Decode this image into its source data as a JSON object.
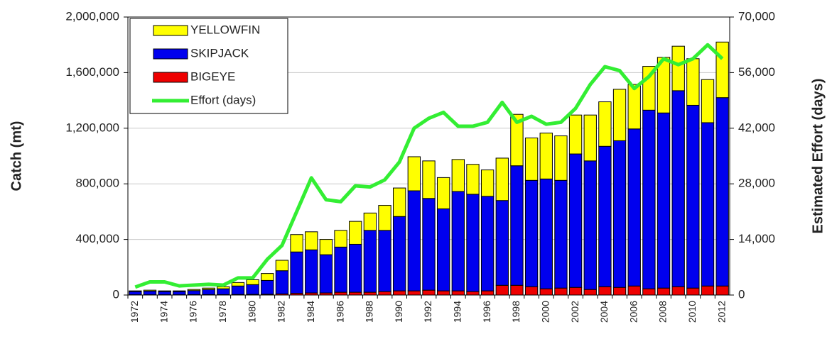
{
  "chart_data": {
    "type": "bar",
    "y_label": "Catch (mt)",
    "y2_label": "Estimated Effort (days)",
    "categories": [
      "1972",
      null,
      "1974",
      null,
      "1976",
      null,
      "1978",
      null,
      "1980",
      null,
      "1982",
      null,
      "1984",
      null,
      "1986",
      null,
      "1988",
      null,
      "1990",
      null,
      "1992",
      null,
      "1994",
      null,
      "1996",
      null,
      "1998",
      null,
      "2000",
      null,
      "2002",
      null,
      "2004",
      null,
      "2006",
      null,
      "2008",
      null,
      "2010",
      null,
      "2012"
    ],
    "series": [
      {
        "name": "YELLOWFIN",
        "color": "#ffff00",
        "values": [
          5000,
          7000,
          5000,
          5000,
          8000,
          10000,
          15000,
          25000,
          35000,
          50000,
          75000,
          125000,
          130000,
          110000,
          120000,
          165000,
          125000,
          180000,
          205000,
          245000,
          270000,
          225000,
          230000,
          215000,
          190000,
          305000,
          370000,
          305000,
          330000,
          320000,
          280000,
          330000,
          320000,
          370000,
          320000,
          315000,
          400000,
          320000,
          335000,
          310000,
          400000
        ]
      },
      {
        "name": "SKIPJACK",
        "color": "#0000ee",
        "values": [
          23000,
          26000,
          23000,
          23000,
          29000,
          37000,
          42000,
          61000,
          70000,
          99000,
          167000,
          298000,
          310000,
          275000,
          325000,
          345000,
          445000,
          440000,
          535000,
          720000,
          660000,
          590000,
          715000,
          700000,
          680000,
          610000,
          860000,
          765000,
          790000,
          775000,
          960000,
          925000,
          1010000,
          1055000,
          1130000,
          1285000,
          1260000,
          1410000,
          1315000,
          1175000,
          1355000
        ]
      },
      {
        "name": "BIGEYE",
        "color": "#ee0000",
        "values": [
          2000,
          2000,
          2000,
          2000,
          3000,
          3000,
          3000,
          4000,
          5000,
          6000,
          8000,
          12000,
          15000,
          15000,
          20000,
          20000,
          20000,
          25000,
          30000,
          30000,
          35000,
          30000,
          30000,
          25000,
          30000,
          70000,
          70000,
          60000,
          45000,
          50000,
          55000,
          40000,
          60000,
          55000,
          65000,
          45000,
          50000,
          60000,
          50000,
          65000,
          65000
        ]
      },
      {
        "name": "Effort (days)",
        "color": "#33ee33",
        "axis": "y2",
        "values": [
          2000,
          3300,
          3300,
          2300,
          2500,
          2700,
          2500,
          4300,
          4300,
          9000,
          12500,
          21000,
          29500,
          24000,
          23500,
          27500,
          27200,
          29000,
          33500,
          42000,
          44500,
          46000,
          42500,
          42500,
          43500,
          48500,
          43500,
          45000,
          43000,
          43500,
          47000,
          53000,
          57500,
          56500,
          52000,
          55000,
          59500,
          58000,
          59500,
          63000,
          59500
        ]
      }
    ],
    "ylim": [
      0,
      2000000
    ],
    "yticks": [
      0,
      {
        "value": 400000,
        "label": "400,000"
      },
      {
        "value": 800000,
        "label": "800,000"
      },
      {
        "value": 1200000,
        "label": "1,200,000"
      },
      {
        "value": 1600000,
        "label": "1,600,000"
      },
      {
        "value": 2000000,
        "label": "2,000,000"
      }
    ],
    "y2lim": [
      0,
      70000
    ],
    "y2ticks": [
      0,
      {
        "value": 14000,
        "label": "14,000"
      },
      {
        "value": 28000,
        "label": "28,000"
      },
      {
        "value": 42000,
        "label": "42,000"
      },
      {
        "value": 56000,
        "label": "56,000"
      },
      {
        "value": 70000,
        "label": "70,000"
      }
    ],
    "grid": true,
    "stacked": true,
    "legend": "upper left"
  }
}
